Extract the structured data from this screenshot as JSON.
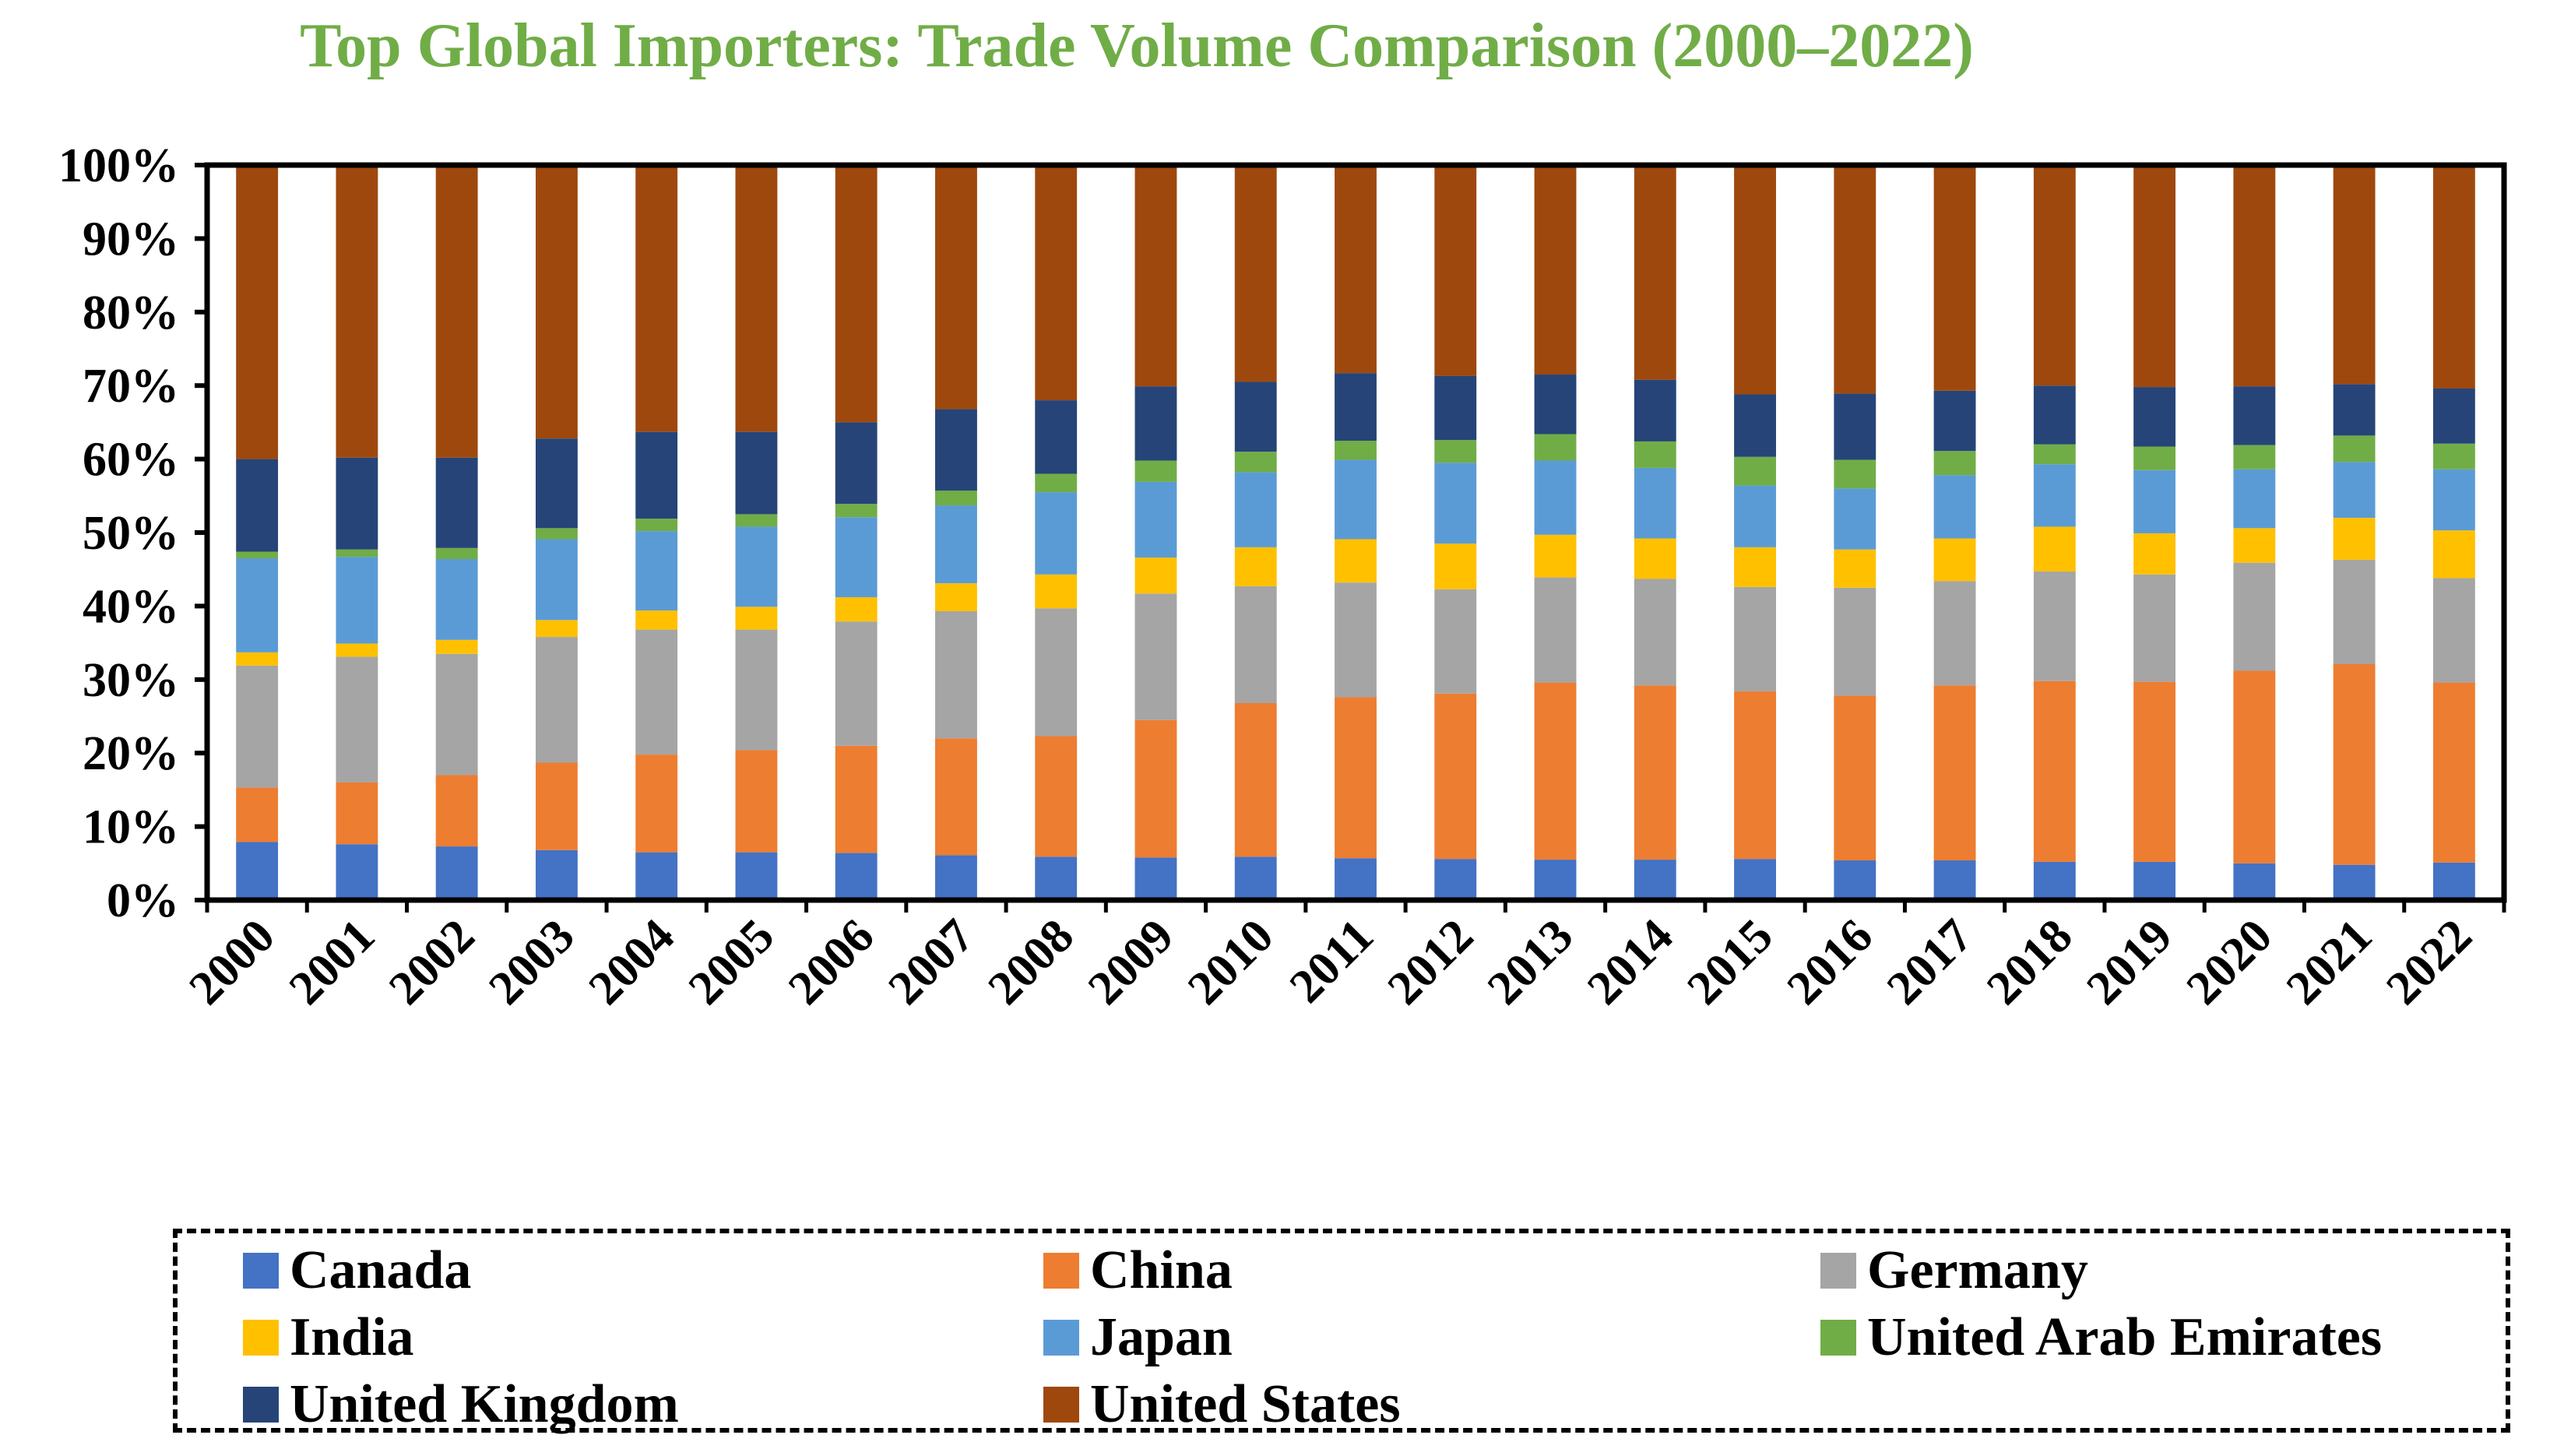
{
  "chart_data": {
    "type": "bar",
    "stacked": "percent",
    "title": "Top Global Importers: Trade Volume Comparison (2000–2022)",
    "xlabel": "",
    "ylabel": "",
    "ylim": [
      0,
      100
    ],
    "yticks": [
      "0%",
      "10%",
      "20%",
      "30%",
      "40%",
      "50%",
      "60%",
      "70%",
      "80%",
      "90%",
      "100%"
    ],
    "grid": false,
    "legend_position": "bottom",
    "categories": [
      "2000",
      "2001",
      "2002",
      "2003",
      "2004",
      "2005",
      "2006",
      "2007",
      "2008",
      "2009",
      "2010",
      "2011",
      "2012",
      "2013",
      "2014",
      "2015",
      "2016",
      "2017",
      "2018",
      "2019",
      "2020",
      "2021",
      "2022"
    ],
    "series": [
      {
        "name": "Canada",
        "color": "#4472C4",
        "values": [
          7.9,
          7.6,
          7.3,
          6.8,
          6.5,
          6.5,
          6.4,
          6.1,
          5.9,
          5.8,
          5.9,
          5.7,
          5.6,
          5.5,
          5.5,
          5.6,
          5.4,
          5.4,
          5.2,
          5.2,
          5.0,
          4.8,
          5.1
        ]
      },
      {
        "name": "China",
        "color": "#ED7D31",
        "values": [
          7.4,
          8.4,
          9.7,
          11.9,
          13.3,
          13.9,
          14.6,
          15.9,
          16.4,
          18.7,
          20.9,
          21.9,
          22.5,
          24.1,
          23.7,
          22.8,
          22.4,
          23.8,
          24.6,
          24.5,
          26.2,
          27.3,
          24.5
        ]
      },
      {
        "name": "Germany",
        "color": "#A5A5A5",
        "values": [
          16.6,
          17.1,
          16.5,
          17.1,
          17.0,
          16.4,
          16.9,
          17.3,
          17.4,
          17.2,
          15.9,
          15.6,
          14.2,
          14.3,
          14.5,
          14.2,
          14.7,
          14.2,
          14.9,
          14.6,
          14.7,
          14.2,
          14.2
        ]
      },
      {
        "name": "India",
        "color": "#FFC000",
        "values": [
          1.8,
          1.8,
          1.9,
          2.3,
          2.6,
          3.1,
          3.3,
          3.8,
          4.6,
          4.9,
          5.3,
          5.9,
          6.2,
          5.8,
          5.5,
          5.4,
          5.2,
          5.8,
          6.1,
          5.6,
          4.7,
          5.7,
          6.5
        ]
      },
      {
        "name": "Japan",
        "color": "#5B9BD5",
        "values": [
          12.8,
          11.8,
          11.0,
          11.0,
          10.8,
          10.9,
          10.9,
          10.6,
          11.2,
          10.3,
          10.2,
          10.8,
          11.0,
          10.1,
          9.6,
          8.4,
          8.3,
          8.6,
          8.5,
          8.6,
          8.0,
          7.6,
          8.3
        ]
      },
      {
        "name": "United Arab Emirates",
        "color": "#70AD47",
        "values": [
          0.9,
          1.0,
          1.5,
          1.5,
          1.7,
          1.7,
          1.8,
          2.0,
          2.5,
          2.9,
          2.8,
          2.6,
          3.1,
          3.6,
          3.6,
          3.9,
          3.9,
          3.3,
          2.7,
          3.2,
          3.3,
          3.6,
          3.5
        ]
      },
      {
        "name": "United Kingdom",
        "color": "#264478",
        "values": [
          12.6,
          12.5,
          12.3,
          12.2,
          11.8,
          11.2,
          11.1,
          11.1,
          10.0,
          10.1,
          9.5,
          9.2,
          8.7,
          8.1,
          8.4,
          8.5,
          9.0,
          8.2,
          8.0,
          8.1,
          8.0,
          7.0,
          7.5
        ]
      },
      {
        "name": "United States",
        "color": "#9E480E",
        "values": [
          40.0,
          39.8,
          39.8,
          37.2,
          36.3,
          36.3,
          35.0,
          33.2,
          32.0,
          30.1,
          29.5,
          28.3,
          28.7,
          28.5,
          29.2,
          31.2,
          31.1,
          30.7,
          30.0,
          30.2,
          30.1,
          29.8,
          30.4
        ]
      }
    ]
  }
}
